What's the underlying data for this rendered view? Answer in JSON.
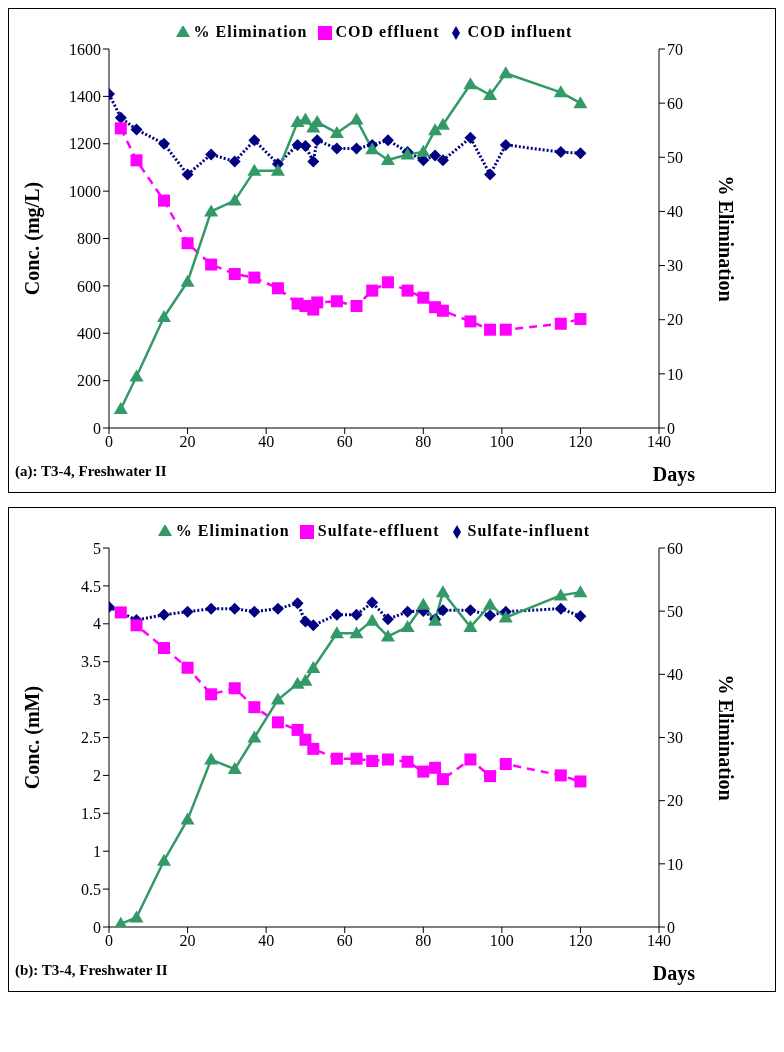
{
  "chart_data": [
    {
      "type": "line",
      "xlabel": "Days",
      "ylabel": "Conc. (mg/L)",
      "y2label": "% Elimination",
      "annotations": [
        "(a):  T3-4,  Freshwater II"
      ],
      "legend": "top",
      "xlim": [
        0,
        140
      ],
      "xticks": [
        0,
        20,
        40,
        60,
        80,
        100,
        120,
        140
      ],
      "ylim": [
        0,
        1600
      ],
      "yticks": [
        0,
        200,
        400,
        600,
        800,
        1000,
        1200,
        1400,
        1600
      ],
      "y2lim": [
        0,
        70
      ],
      "y2ticks": [
        0,
        10,
        20,
        30,
        40,
        50,
        60,
        70
      ],
      "series": [
        {
          "name": "COD influent",
          "color": "#000080",
          "marker": "diamond",
          "line_style": "dotted",
          "x": [
            0,
            3,
            7,
            14,
            20,
            26,
            32,
            37,
            43,
            48,
            50,
            52,
            53,
            58,
            63,
            67,
            71,
            76,
            80,
            83,
            85,
            92,
            97,
            101,
            115,
            120
          ],
          "values": [
            1410,
            1310,
            1260,
            1200,
            1070,
            1155,
            1125,
            1215,
            1115,
            1195,
            1190,
            1125,
            1215,
            1180,
            1180,
            1195,
            1215,
            1165,
            1130,
            1150,
            1130,
            1225,
            1070,
            1195,
            1165,
            1160
          ]
        },
        {
          "name": "COD effluent",
          "color": "#ff00ff",
          "marker": "square",
          "line_style": "dashed",
          "x": [
            3,
            7,
            14,
            20,
            26,
            32,
            37,
            43,
            48,
            50,
            52,
            53,
            58,
            63,
            67,
            71,
            76,
            80,
            83,
            85,
            92,
            97,
            101,
            115,
            120
          ],
          "values": [
            1265,
            1130,
            960,
            780,
            690,
            650,
            635,
            590,
            525,
            515,
            500,
            530,
            535,
            515,
            580,
            615,
            580,
            550,
            510,
            495,
            450,
            415,
            415,
            440,
            460
          ]
        },
        {
          "name": "% Elimination",
          "color": "#339966",
          "marker": "triangle",
          "line_style": "solid",
          "axis": "y2",
          "x": [
            3,
            7,
            14,
            20,
            26,
            32,
            37,
            43,
            48,
            50,
            52,
            53,
            58,
            63,
            67,
            71,
            76,
            80,
            83,
            85,
            92,
            97,
            101,
            115,
            120
          ],
          "values": [
            3.5,
            9.5,
            20.5,
            27,
            40,
            42,
            47.5,
            47.5,
            56.5,
            57,
            55.5,
            56.5,
            54.5,
            57,
            51.5,
            49.5,
            50.5,
            51,
            55,
            56,
            63.5,
            61.5,
            65.5,
            62,
            60
          ]
        }
      ]
    },
    {
      "type": "line",
      "xlabel": "Days",
      "ylabel": "Conc. (mM)",
      "y2label": "% Elimination",
      "annotations": [
        "(b): T3-4, Freshwater II"
      ],
      "legend": "top",
      "xlim": [
        0,
        140
      ],
      "xticks": [
        0,
        20,
        40,
        60,
        80,
        100,
        120,
        140
      ],
      "ylim": [
        0,
        5
      ],
      "yticks": [
        0,
        0.5,
        1,
        1.5,
        2,
        2.5,
        3,
        3.5,
        4,
        4.5,
        5
      ],
      "y2lim": [
        0,
        60
      ],
      "y2ticks": [
        0,
        10,
        20,
        30,
        40,
        50,
        60
      ],
      "series": [
        {
          "name": "Sulfate-influent",
          "color": "#000080",
          "marker": "diamond",
          "line_style": "dotted",
          "x": [
            0,
            7,
            14,
            20,
            26,
            32,
            37,
            43,
            48,
            50,
            52,
            58,
            63,
            67,
            71,
            76,
            80,
            83,
            85,
            92,
            97,
            101,
            115,
            120
          ],
          "values": [
            4.22,
            4.05,
            4.12,
            4.16,
            4.2,
            4.2,
            4.16,
            4.2,
            4.27,
            4.03,
            3.98,
            4.12,
            4.12,
            4.28,
            4.06,
            4.16,
            4.17,
            4.06,
            4.18,
            4.18,
            4.11,
            4.16,
            4.2,
            4.1
          ]
        },
        {
          "name": "Sulfate-effluent",
          "color": "#ff00ff",
          "marker": "square",
          "line_style": "dashed",
          "x": [
            3,
            7,
            14,
            20,
            26,
            32,
            37,
            43,
            48,
            50,
            52,
            58,
            63,
            67,
            71,
            76,
            80,
            83,
            85,
            92,
            97,
            101,
            115,
            120
          ],
          "values": [
            4.15,
            3.98,
            3.68,
            3.42,
            3.07,
            3.15,
            2.9,
            2.7,
            2.6,
            2.47,
            2.35,
            2.22,
            2.22,
            2.19,
            2.21,
            2.18,
            2.05,
            2.1,
            1.95,
            2.21,
            1.99,
            2.15,
            2.0,
            1.92
          ]
        },
        {
          "name": "% Elimination",
          "color": "#339966",
          "marker": "triangle",
          "line_style": "solid",
          "axis": "y2",
          "x": [
            3,
            7,
            14,
            20,
            26,
            32,
            37,
            43,
            48,
            50,
            52,
            58,
            63,
            67,
            71,
            76,
            80,
            83,
            85,
            92,
            97,
            101,
            115,
            120
          ],
          "values": [
            0.5,
            1.5,
            10.5,
            17,
            26.5,
            25,
            30,
            36,
            38.5,
            39,
            41,
            46.5,
            46.5,
            48.5,
            46,
            47.5,
            51,
            48.5,
            53,
            47.5,
            51,
            49,
            52.5,
            53
          ]
        }
      ]
    }
  ]
}
